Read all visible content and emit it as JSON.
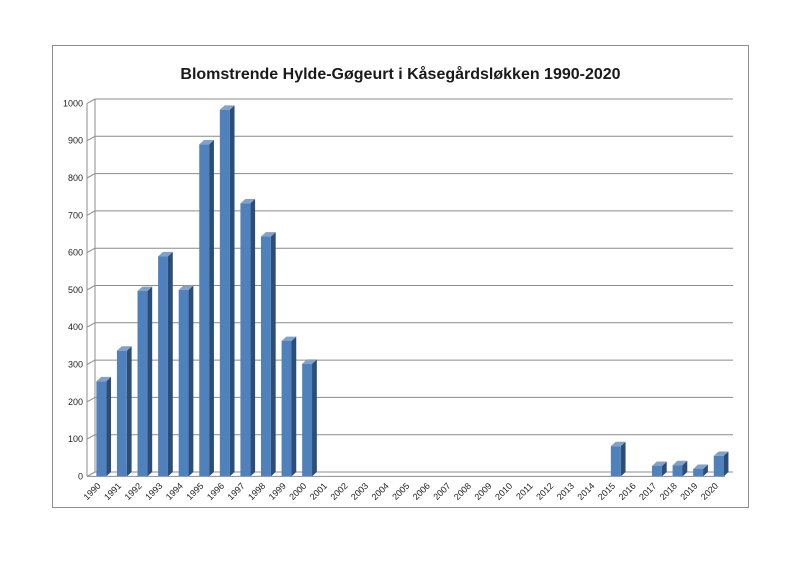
{
  "chart_data": {
    "type": "bar",
    "title": "Blomstrende Hylde-Gøgeurt i Kåsegårdsløkken 1990-2020",
    "xlabel": "",
    "ylabel": "",
    "ylim": [
      0,
      1000
    ],
    "yticks": [
      0,
      100,
      200,
      300,
      400,
      500,
      600,
      700,
      800,
      900,
      1000
    ],
    "grid": true,
    "legend": "none",
    "bar_color": "#4f81bd",
    "categories": [
      "1990",
      "1991",
      "1992",
      "1993",
      "1994",
      "1995",
      "1996",
      "1997",
      "1998",
      "1999",
      "2000",
      "2001",
      "2002",
      "2003",
      "2004",
      "2005",
      "2006",
      "2007",
      "2008",
      "2009",
      "2010",
      "2011",
      "2012",
      "2013",
      "2014",
      "2015",
      "2016",
      "2017",
      "2018",
      "2019",
      "2020"
    ],
    "values": [
      255,
      337,
      497,
      590,
      500,
      890,
      983,
      732,
      643,
      363,
      302,
      0,
      0,
      0,
      0,
      0,
      0,
      0,
      0,
      0,
      0,
      0,
      0,
      0,
      0,
      81,
      0,
      28,
      30,
      20,
      55
    ]
  }
}
